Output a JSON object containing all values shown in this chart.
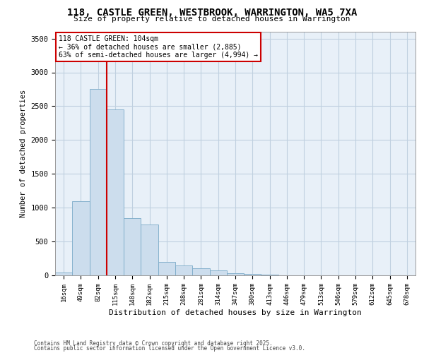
{
  "title_line1": "118, CASTLE GREEN, WESTBROOK, WARRINGTON, WA5 7XA",
  "title_line2": "Size of property relative to detached houses in Warrington",
  "xlabel": "Distribution of detached houses by size in Warrington",
  "ylabel": "Number of detached properties",
  "annotation_line1": "118 CASTLE GREEN: 104sqm",
  "annotation_line2": "← 36% of detached houses are smaller (2,885)",
  "annotation_line3": "63% of semi-detached houses are larger (4,994) →",
  "footer_line1": "Contains HM Land Registry data © Crown copyright and database right 2025.",
  "footer_line2": "Contains public sector information licensed under the Open Government Licence v3.0.",
  "bin_labels": [
    "16sqm",
    "49sqm",
    "82sqm",
    "115sqm",
    "148sqm",
    "182sqm",
    "215sqm",
    "248sqm",
    "281sqm",
    "314sqm",
    "347sqm",
    "380sqm",
    "413sqm",
    "446sqm",
    "479sqm",
    "513sqm",
    "546sqm",
    "579sqm",
    "612sqm",
    "645sqm",
    "678sqm"
  ],
  "bar_values": [
    45,
    1100,
    2750,
    2450,
    850,
    750,
    200,
    150,
    100,
    75,
    30,
    20,
    10,
    5,
    0,
    0,
    0,
    0,
    0,
    0,
    0
  ],
  "bar_color": "#ccdded",
  "bar_edge_color": "#7aaac8",
  "grid_color": "#c0d0e0",
  "bg_color": "#e8f0f8",
  "vline_color": "#cc0000",
  "annotation_box_color": "#cc0000",
  "ylim": [
    0,
    3600
  ],
  "yticks": [
    0,
    500,
    1000,
    1500,
    2000,
    2500,
    3000,
    3500
  ],
  "vline_pos": 2.5
}
